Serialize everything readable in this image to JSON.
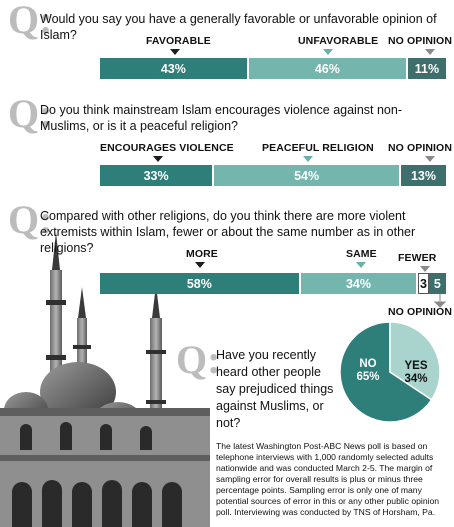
{
  "q_mark": "Q:",
  "questions": [
    {
      "text": "Would you say you have a generally favorable or unfavorable opinion of Islam?",
      "segments": [
        {
          "label": "FAVORABLE",
          "value": 43,
          "display": "43%",
          "color": "#2e7e79"
        },
        {
          "label": "UNFAVORABLE",
          "value": 46,
          "display": "46%",
          "color": "#74b5ae"
        },
        {
          "label": "NO OPINION",
          "value": 11,
          "display": "11%",
          "color": "#3f6f6c"
        }
      ]
    },
    {
      "text": "Do you think mainstream Islam encourages violence against non-Muslims, or is it a peaceful religion?",
      "segments": [
        {
          "label": "ENCOURAGES VIOLENCE",
          "value": 33,
          "display": "33%",
          "color": "#2e7e79"
        },
        {
          "label": "PEACEFUL RELIGION",
          "value": 54,
          "display": "54%",
          "color": "#74b5ae"
        },
        {
          "label": "NO OPINION",
          "value": 13,
          "display": "13%",
          "color": "#3f6f6c"
        }
      ]
    },
    {
      "text": "Compared with other religions, do you think there are more violent extremists within Islam, fewer or about the same number as in other religions?",
      "segments": [
        {
          "label": "MORE",
          "value": 58,
          "display": "58%",
          "color": "#2e7e79"
        },
        {
          "label": "SAME",
          "value": 34,
          "display": "34%",
          "color": "#74b5ae"
        },
        {
          "label": "FEWER",
          "value": 3,
          "display": "3",
          "color": "#e6e6e6"
        },
        {
          "label": "NO OPINION",
          "value": 5,
          "display": "5",
          "color": "#3f6f6c"
        }
      ]
    },
    {
      "text": "Have you recently heard other people say prejudiced things against Muslims, or not?",
      "segments": [
        {
          "label": "NO",
          "value": 65,
          "display": "65%",
          "color": "#2e7e79"
        },
        {
          "label": "YES",
          "value": 34,
          "display": "34%",
          "color": "#a9d3cd"
        }
      ]
    }
  ],
  "chart_data": [
    {
      "type": "bar",
      "stacked": true,
      "title": "Would you say you have a generally favorable or unfavorable opinion of Islam?",
      "categories": [
        "FAVORABLE",
        "UNFAVORABLE",
        "NO OPINION"
      ],
      "values": [
        43,
        46,
        11
      ],
      "unit": "%"
    },
    {
      "type": "bar",
      "stacked": true,
      "title": "Do you think mainstream Islam encourages violence against non-Muslims, or is it a peaceful religion?",
      "categories": [
        "ENCOURAGES VIOLENCE",
        "PEACEFUL RELIGION",
        "NO OPINION"
      ],
      "values": [
        33,
        54,
        13
      ],
      "unit": "%"
    },
    {
      "type": "bar",
      "stacked": true,
      "title": "Compared with other religions, do you think there are more violent extremists within Islam, fewer or about the same number as in other religions?",
      "categories": [
        "MORE",
        "SAME",
        "FEWER",
        "NO OPINION"
      ],
      "values": [
        58,
        34,
        3,
        5
      ],
      "unit": "%"
    },
    {
      "type": "pie",
      "title": "Have you recently heard other people say prejudiced things against Muslims, or not?",
      "categories": [
        "NO",
        "YES"
      ],
      "values": [
        65,
        34
      ],
      "unit": "%"
    }
  ],
  "footnote": "The latest Washington Post-ABC News poll is based on telephone interviews with 1,000 randomly selected adults nationwide and was conducted March 2-5. The margin of sampling error for overall results is plus or minus three percentage points. Sampling error is only one of many potential sources of error in this or any other public opinion poll. Interviewing was conducted by TNS of Horsham, Pa."
}
